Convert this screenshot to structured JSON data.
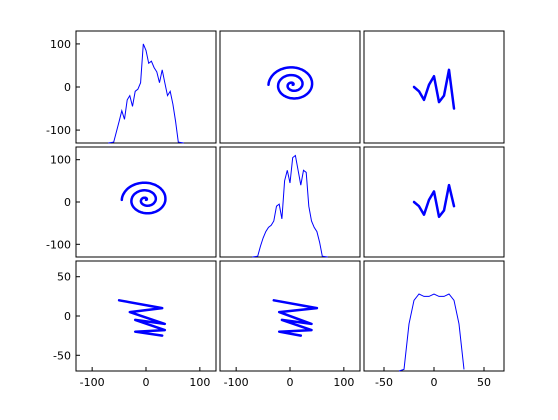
{
  "chart_data": {
    "type": "scatter-matrix",
    "grid": false,
    "layout": {
      "rows": 3,
      "cols": 3
    },
    "colors": {
      "points": "#0000ff",
      "axes": "#000000",
      "background": "#ffffff"
    },
    "axes": {
      "x_ranges": [
        [
          -130,
          130
        ],
        [
          -130,
          130
        ],
        [
          -70,
          70
        ]
      ],
      "y_ranges": [
        [
          -130,
          130
        ],
        [
          -130,
          130
        ],
        [
          -70,
          70
        ]
      ],
      "x_ticks": [
        [
          -100,
          0,
          100
        ],
        [
          -100,
          0,
          100
        ],
        [
          -50,
          0,
          50
        ]
      ],
      "y_ticks": [
        [
          -100,
          0,
          100
        ],
        [
          -100,
          0,
          100
        ],
        [
          -50,
          0,
          50
        ]
      ],
      "x_tick_labels": [
        [
          "-100",
          "0",
          "100"
        ],
        [
          "-100",
          "0",
          "100"
        ],
        [
          "-50",
          "0",
          "50"
        ]
      ],
      "y_tick_labels": [
        [
          "-100",
          "0",
          "100"
        ],
        [
          "-100",
          "0",
          "100"
        ],
        [
          "-50",
          "0",
          "50"
        ]
      ]
    },
    "diagonal": [
      {
        "type": "line",
        "x": [
          -70,
          -60,
          -50,
          -45,
          -40,
          -35,
          -30,
          -25,
          -20,
          -15,
          -10,
          -5,
          0,
          5,
          10,
          15,
          20,
          25,
          30,
          35,
          40,
          45,
          50,
          55,
          60,
          70
        ],
        "y": [
          -130,
          -128,
          -80,
          -55,
          -75,
          -30,
          -20,
          -45,
          -10,
          -5,
          10,
          100,
          85,
          55,
          60,
          45,
          35,
          10,
          40,
          10,
          -20,
          -10,
          -40,
          -80,
          -128,
          -130
        ]
      },
      {
        "type": "line",
        "x": [
          -70,
          -60,
          -55,
          -50,
          -45,
          -40,
          -35,
          -30,
          -25,
          -20,
          -15,
          -10,
          -5,
          0,
          5,
          10,
          15,
          20,
          25,
          30,
          35,
          40,
          45,
          50,
          55,
          60,
          70
        ],
        "y": [
          -130,
          -128,
          -105,
          -85,
          -70,
          -60,
          -55,
          -45,
          -10,
          -5,
          -40,
          50,
          75,
          45,
          105,
          110,
          75,
          40,
          75,
          70,
          -10,
          -45,
          -60,
          -70,
          -95,
          -128,
          -130
        ]
      },
      {
        "type": "line",
        "x": [
          -35,
          -30,
          -25,
          -20,
          -15,
          -10,
          -5,
          0,
          5,
          10,
          15,
          20,
          25,
          30
        ],
        "y": [
          -70,
          -68,
          -10,
          20,
          28,
          25,
          25,
          28,
          25,
          25,
          28,
          20,
          -10,
          -68
        ]
      }
    ],
    "off_diagonal": [
      {
        "row": 0,
        "col": 1,
        "shape": "spiral",
        "x_center": 5,
        "y_center": 5,
        "turns": 2.5,
        "outer_radius": 45
      },
      {
        "row": 0,
        "col": 2,
        "shape": "wave",
        "x": [
          -20,
          -15,
          -10,
          -5,
          0,
          5,
          10,
          15,
          20
        ],
        "y": [
          0,
          -10,
          -30,
          5,
          25,
          -35,
          -20,
          40,
          -50
        ]
      },
      {
        "row": 1,
        "col": 0,
        "shape": "spiral",
        "x_center": 0,
        "y_center": 5,
        "turns": 2.5,
        "outer_radius": 45
      },
      {
        "row": 1,
        "col": 2,
        "shape": "wave",
        "x": [
          -20,
          -15,
          -10,
          -5,
          0,
          5,
          10,
          15,
          20
        ],
        "y": [
          0,
          -10,
          -30,
          5,
          25,
          -35,
          -20,
          40,
          -10
        ]
      },
      {
        "row": 2,
        "col": 0,
        "shape": "zigzag",
        "x": [
          -50,
          30,
          -30,
          35,
          -20,
          35,
          -20,
          30
        ],
        "y": [
          20,
          10,
          5,
          -10,
          -5,
          -18,
          -20,
          -25
        ]
      },
      {
        "row": 2,
        "col": 1,
        "shape": "zigzag",
        "x": [
          -30,
          50,
          -20,
          40,
          -15,
          40,
          -20,
          20
        ],
        "y": [
          20,
          10,
          5,
          -10,
          -5,
          -18,
          -20,
          -25
        ]
      }
    ]
  }
}
